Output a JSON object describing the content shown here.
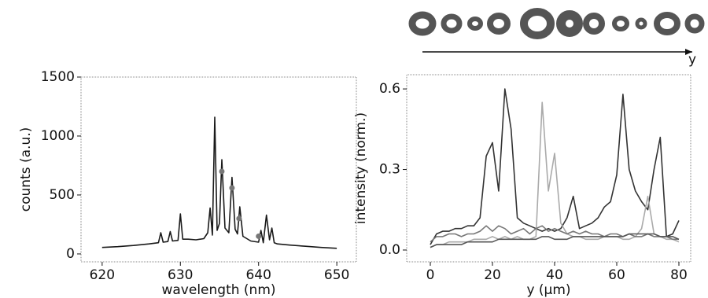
{
  "chart_data": [
    {
      "type": "line",
      "xlabel": "wavelength (nm)",
      "ylabel": "counts (a.u.)",
      "x": [
        620,
        622,
        624,
        626,
        627.2,
        627.5,
        627.8,
        628.4,
        628.7,
        629,
        629.7,
        630,
        630.3,
        631,
        632,
        633,
        633.5,
        633.8,
        634.1,
        634.4,
        634.7,
        635,
        635.3,
        635.7,
        636.2,
        636.6,
        637,
        637.3,
        637.6,
        638,
        639,
        640,
        640.3,
        640.6,
        641,
        641.4,
        641.7,
        642,
        642.4,
        644,
        646,
        648,
        650
      ],
      "series": [
        {
          "color": "#1a1a1a",
          "values": [
            55,
            62,
            72,
            85,
            95,
            180,
            100,
            105,
            190,
            110,
            115,
            340,
            125,
            125,
            120,
            130,
            180,
            390,
            160,
            1160,
            200,
            260,
            800,
            220,
            180,
            650,
            210,
            170,
            400,
            150,
            110,
            100,
            200,
            95,
            330,
            120,
            220,
            95,
            85,
            75,
            65,
            55,
            48
          ]
        }
      ],
      "markers": {
        "color": "#777777",
        "x": [
          635.3,
          636.6,
          637.5,
          640
        ],
        "values": [
          700,
          560,
          300,
          150
        ]
      },
      "xlim": [
        617.3,
        652.5
      ],
      "ylim": [
        -67,
        1500
      ],
      "xticks": [
        620,
        630,
        640,
        650
      ],
      "yticks": [
        0,
        500,
        1000,
        1500
      ]
    },
    {
      "type": "line",
      "xlabel": "y (μm)",
      "ylabel": "intensity (norm.)",
      "x": [
        0,
        2,
        4,
        6,
        8,
        10,
        12,
        14,
        16,
        18,
        20,
        22,
        24,
        26,
        28,
        30,
        32,
        34,
        36,
        38,
        40,
        42,
        44,
        46,
        48,
        50,
        52,
        54,
        56,
        58,
        60,
        62,
        64,
        66,
        68,
        70,
        72,
        74,
        76,
        78,
        80
      ],
      "series": [
        {
          "color": "#333333",
          "values": [
            0.02,
            0.06,
            0.07,
            0.07,
            0.08,
            0.08,
            0.09,
            0.09,
            0.12,
            0.35,
            0.4,
            0.22,
            0.6,
            0.45,
            0.12,
            0.1,
            0.09,
            0.08,
            0.07,
            0.08,
            0.07,
            0.08,
            0.12,
            0.2,
            0.08,
            0.09,
            0.1,
            0.12,
            0.16,
            0.18,
            0.28,
            0.58,
            0.3,
            0.22,
            0.18,
            0.15,
            0.3,
            0.42,
            0.05,
            0.06,
            0.11
          ]
        },
        {
          "color": "#aaaaaa",
          "values": [
            0.01,
            0.02,
            0.02,
            0.03,
            0.03,
            0.03,
            0.03,
            0.04,
            0.04,
            0.04,
            0.05,
            0.04,
            0.05,
            0.04,
            0.05,
            0.04,
            0.04,
            0.05,
            0.55,
            0.22,
            0.36,
            0.1,
            0.06,
            0.05,
            0.05,
            0.04,
            0.04,
            0.04,
            0.05,
            0.05,
            0.05,
            0.04,
            0.04,
            0.05,
            0.08,
            0.2,
            0.06,
            0.05,
            0.04,
            0.04,
            0.03
          ]
        },
        {
          "color": "#777777",
          "values": [
            0.03,
            0.05,
            0.05,
            0.06,
            0.06,
            0.05,
            0.06,
            0.06,
            0.07,
            0.09,
            0.07,
            0.09,
            0.08,
            0.06,
            0.07,
            0.08,
            0.06,
            0.08,
            0.09,
            0.07,
            0.08,
            0.07,
            0.06,
            0.07,
            0.06,
            0.07,
            0.06,
            0.06,
            0.05,
            0.06,
            0.06,
            0.05,
            0.06,
            0.05,
            0.05,
            0.06,
            0.05,
            0.05,
            0.05,
            0.04,
            0.04
          ]
        },
        {
          "color": "#555555",
          "values": [
            0.01,
            0.02,
            0.02,
            0.02,
            0.02,
            0.02,
            0.03,
            0.03,
            0.03,
            0.03,
            0.03,
            0.04,
            0.04,
            0.04,
            0.04,
            0.04,
            0.04,
            0.04,
            0.05,
            0.05,
            0.04,
            0.04,
            0.04,
            0.05,
            0.05,
            0.05,
            0.05,
            0.05,
            0.05,
            0.05,
            0.05,
            0.05,
            0.06,
            0.06,
            0.06,
            0.06,
            0.06,
            0.05,
            0.05,
            0.05,
            0.04
          ]
        }
      ],
      "xlim": [
        -7.6,
        83.8
      ],
      "ylim": [
        -0.044,
        0.653
      ],
      "xticks": [
        0,
        20,
        40,
        60,
        80
      ],
      "yticks": [
        {
          "value": 0,
          "label": "0.0"
        },
        0.3,
        0.6
      ]
    }
  ],
  "inset": {
    "axis_label": "y"
  }
}
